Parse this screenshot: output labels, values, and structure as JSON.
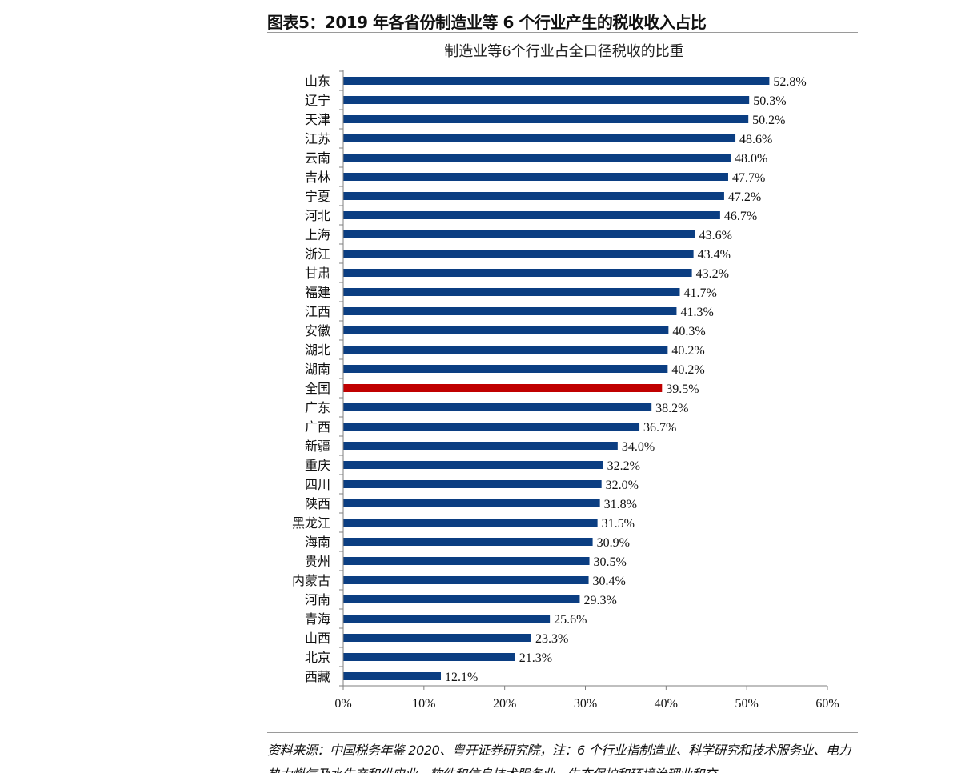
{
  "figure": {
    "heading": "图表5：2019 年各省份制造业等 6 个行业产生的税收收入占比",
    "source_note": "资料来源：中国税务年鉴 2020、粤开证券研究院，注：6 个行业指制造业、科学研究和技术服务业、电力热力燃气及水生产和供应业、软件和信息技术服务业、生态保护和环境治理业和交"
  },
  "colors": {
    "bar": "#0b3e82",
    "highlight_bar": "#c00000",
    "axis": "#7f7f7f"
  },
  "chart_data": {
    "type": "bar",
    "orientation": "horizontal",
    "title": "制造业等6个行业占全口径税收的比重",
    "xlabel": "",
    "ylabel": "",
    "xlim": [
      0,
      60
    ],
    "x_ticks": [
      "0%",
      "10%",
      "20%",
      "30%",
      "40%",
      "50%",
      "60%"
    ],
    "grid": false,
    "legend": "none",
    "value_suffix": "%",
    "highlight_category": "全国",
    "categories": [
      "山东",
      "辽宁",
      "天津",
      "江苏",
      "云南",
      "吉林",
      "宁夏",
      "河北",
      "上海",
      "浙江",
      "甘肃",
      "福建",
      "江西",
      "安徽",
      "湖北",
      "湖南",
      "全国",
      "广东",
      "广西",
      "新疆",
      "重庆",
      "四川",
      "陕西",
      "黑龙江",
      "海南",
      "贵州",
      "内蒙古",
      "河南",
      "青海",
      "山西",
      "北京",
      "西藏"
    ],
    "values": [
      52.8,
      50.3,
      50.2,
      48.6,
      48.0,
      47.7,
      47.2,
      46.7,
      43.6,
      43.4,
      43.2,
      41.7,
      41.3,
      40.3,
      40.2,
      40.2,
      39.5,
      38.2,
      36.7,
      34.0,
      32.2,
      32.0,
      31.8,
      31.5,
      30.9,
      30.5,
      30.4,
      29.3,
      25.6,
      23.3,
      21.3,
      12.1
    ],
    "value_labels": [
      "52.8%",
      "50.3%",
      "50.2%",
      "48.6%",
      "48.0%",
      "47.7%",
      "47.2%",
      "46.7%",
      "43.6%",
      "43.4%",
      "43.2%",
      "41.7%",
      "41.3%",
      "40.3%",
      "40.2%",
      "40.2%",
      "39.5%",
      "38.2%",
      "36.7%",
      "34.0%",
      "32.2%",
      "32.0%",
      "31.8%",
      "31.5%",
      "30.9%",
      "30.5%",
      "30.4%",
      "29.3%",
      "25.6%",
      "23.3%",
      "21.3%",
      "12.1%"
    ]
  }
}
